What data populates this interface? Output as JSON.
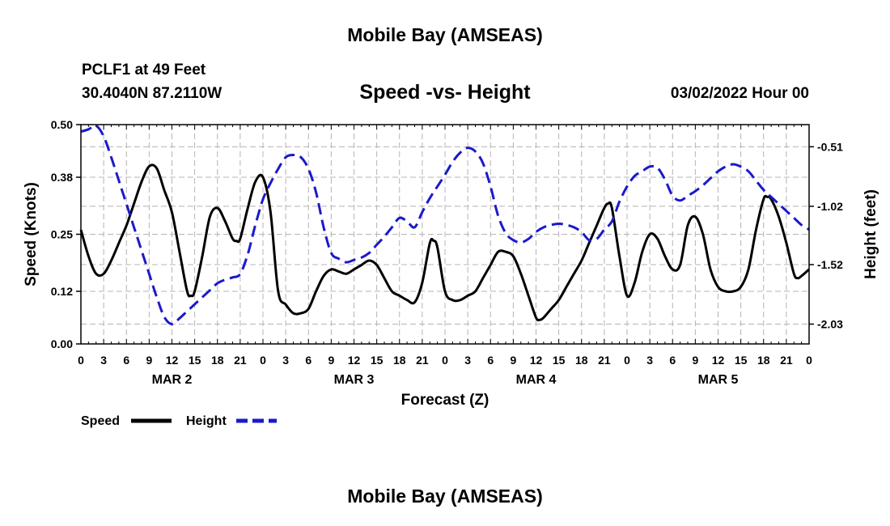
{
  "header": {
    "title": "Mobile Bay (AMSEAS)",
    "station": "PCLF1 at 49 Feet",
    "coords": "30.4040N  87.2110W",
    "chart_title": "Speed -vs- Height",
    "datetime": "03/02/2022 Hour 00"
  },
  "footer": {
    "title": "Mobile Bay (AMSEAS)"
  },
  "legend": {
    "speed_label": "Speed",
    "height_label": "Height"
  },
  "colors": {
    "speed": "#000000",
    "height": "#1a1acc",
    "grid": "#b4b4b4"
  },
  "chart_data": {
    "type": "line",
    "title": "Speed -vs- Height",
    "xlabel": "Forecast (Z)",
    "ylabel": "Speed (Knots)",
    "y2label": "Height (feet)",
    "x_tick_labels": [
      "0",
      "3",
      "6",
      "9",
      "12",
      "15",
      "18",
      "21",
      "0",
      "3",
      "6",
      "9",
      "12",
      "15",
      "18",
      "21",
      "0",
      "3",
      "6",
      "9",
      "12",
      "15",
      "18",
      "21",
      "0",
      "3",
      "6",
      "9",
      "12",
      "15",
      "18",
      "21",
      "0"
    ],
    "day_labels": [
      {
        "label": "MAR 2",
        "hour": 12
      },
      {
        "label": "MAR 3",
        "hour": 36
      },
      {
        "label": "MAR 4",
        "hour": 60
      },
      {
        "label": "MAR 5",
        "hour": 84
      }
    ],
    "xlim": [
      0,
      96
    ],
    "ylim": [
      0,
      0.5
    ],
    "y_ticks": [
      "0.00",
      "0.12",
      "0.25",
      "0.38",
      "0.50"
    ],
    "y2lim": [
      -2.2,
      -0.32
    ],
    "y2_ticks": [
      "-2.03",
      "-1.52",
      "-1.02",
      "-0.51"
    ],
    "grid": true,
    "legend_position": "bottom-left",
    "series": [
      {
        "name": "Speed",
        "axis": "left",
        "style": "solid",
        "points": [
          [
            0,
            0.26
          ],
          [
            1,
            0.2
          ],
          [
            2,
            0.16
          ],
          [
            3,
            0.16
          ],
          [
            4,
            0.19
          ],
          [
            5,
            0.23
          ],
          [
            6,
            0.27
          ],
          [
            7,
            0.32
          ],
          [
            8,
            0.37
          ],
          [
            9,
            0.405
          ],
          [
            10,
            0.4
          ],
          [
            11,
            0.35
          ],
          [
            12,
            0.3
          ],
          [
            13,
            0.21
          ],
          [
            14,
            0.12
          ],
          [
            14.5,
            0.11
          ],
          [
            15,
            0.12
          ],
          [
            16,
            0.2
          ],
          [
            17,
            0.29
          ],
          [
            18,
            0.31
          ],
          [
            19,
            0.28
          ],
          [
            20,
            0.24
          ],
          [
            20.5,
            0.235
          ],
          [
            21,
            0.24
          ],
          [
            22,
            0.31
          ],
          [
            23,
            0.37
          ],
          [
            24,
            0.38
          ],
          [
            25,
            0.3
          ],
          [
            26,
            0.12
          ],
          [
            27,
            0.09
          ],
          [
            28,
            0.07
          ],
          [
            29,
            0.07
          ],
          [
            30,
            0.08
          ],
          [
            31,
            0.12
          ],
          [
            32,
            0.155
          ],
          [
            33,
            0.17
          ],
          [
            34,
            0.165
          ],
          [
            35,
            0.16
          ],
          [
            36,
            0.17
          ],
          [
            37,
            0.18
          ],
          [
            38,
            0.19
          ],
          [
            39,
            0.18
          ],
          [
            40,
            0.15
          ],
          [
            41,
            0.12
          ],
          [
            42,
            0.11
          ],
          [
            43,
            0.1
          ],
          [
            44,
            0.095
          ],
          [
            45,
            0.14
          ],
          [
            46,
            0.23
          ],
          [
            46.5,
            0.235
          ],
          [
            47,
            0.22
          ],
          [
            48,
            0.12
          ],
          [
            49,
            0.1
          ],
          [
            50,
            0.1
          ],
          [
            51,
            0.11
          ],
          [
            52,
            0.12
          ],
          [
            53,
            0.15
          ],
          [
            54,
            0.18
          ],
          [
            55,
            0.21
          ],
          [
            56,
            0.21
          ],
          [
            57,
            0.2
          ],
          [
            58,
            0.16
          ],
          [
            59,
            0.11
          ],
          [
            60,
            0.06
          ],
          [
            60.5,
            0.055
          ],
          [
            61,
            0.06
          ],
          [
            62,
            0.08
          ],
          [
            63,
            0.1
          ],
          [
            64,
            0.13
          ],
          [
            65,
            0.16
          ],
          [
            66,
            0.19
          ],
          [
            67,
            0.23
          ],
          [
            68,
            0.27
          ],
          [
            69,
            0.31
          ],
          [
            69.5,
            0.32
          ],
          [
            70,
            0.31
          ],
          [
            71,
            0.2
          ],
          [
            72,
            0.11
          ],
          [
            73,
            0.14
          ],
          [
            74,
            0.21
          ],
          [
            75,
            0.25
          ],
          [
            76,
            0.24
          ],
          [
            77,
            0.2
          ],
          [
            78,
            0.17
          ],
          [
            79,
            0.18
          ],
          [
            80,
            0.27
          ],
          [
            81,
            0.29
          ],
          [
            82,
            0.25
          ],
          [
            83,
            0.17
          ],
          [
            84,
            0.13
          ],
          [
            85,
            0.12
          ],
          [
            86,
            0.12
          ],
          [
            87,
            0.13
          ],
          [
            88,
            0.17
          ],
          [
            89,
            0.26
          ],
          [
            90,
            0.33
          ],
          [
            90.5,
            0.335
          ],
          [
            91,
            0.33
          ],
          [
            92,
            0.29
          ],
          [
            93,
            0.23
          ],
          [
            94,
            0.16
          ],
          [
            94.5,
            0.15
          ],
          [
            95,
            0.155
          ],
          [
            96,
            0.17
          ]
        ]
      },
      {
        "name": "Height",
        "axis": "right",
        "style": "dashed",
        "points": [
          [
            0,
            -0.38
          ],
          [
            1,
            -0.36
          ],
          [
            2,
            -0.33
          ],
          [
            3,
            -0.42
          ],
          [
            4,
            -0.6
          ],
          [
            5,
            -0.8
          ],
          [
            6,
            -1.0
          ],
          [
            7,
            -1.2
          ],
          [
            8,
            -1.4
          ],
          [
            9,
            -1.6
          ],
          [
            10,
            -1.8
          ],
          [
            11,
            -1.97
          ],
          [
            12,
            -2.03
          ],
          [
            13,
            -1.98
          ],
          [
            14,
            -1.92
          ],
          [
            15,
            -1.86
          ],
          [
            16,
            -1.8
          ],
          [
            17,
            -1.74
          ],
          [
            18,
            -1.68
          ],
          [
            19,
            -1.65
          ],
          [
            20,
            -1.63
          ],
          [
            21,
            -1.6
          ],
          [
            22,
            -1.43
          ],
          [
            23,
            -1.18
          ],
          [
            24,
            -0.96
          ],
          [
            25,
            -0.82
          ],
          [
            26,
            -0.7
          ],
          [
            27,
            -0.6
          ],
          [
            28,
            -0.58
          ],
          [
            29,
            -0.6
          ],
          [
            30,
            -0.7
          ],
          [
            31,
            -0.9
          ],
          [
            32,
            -1.2
          ],
          [
            33,
            -1.42
          ],
          [
            34,
            -1.47
          ],
          [
            35,
            -1.5
          ],
          [
            36,
            -1.48
          ],
          [
            37,
            -1.46
          ],
          [
            38,
            -1.42
          ],
          [
            39,
            -1.35
          ],
          [
            40,
            -1.28
          ],
          [
            41,
            -1.2
          ],
          [
            42,
            -1.12
          ],
          [
            43,
            -1.15
          ],
          [
            44,
            -1.2
          ],
          [
            45,
            -1.07
          ],
          [
            46,
            -0.95
          ],
          [
            47,
            -0.85
          ],
          [
            48,
            -0.75
          ],
          [
            49,
            -0.64
          ],
          [
            50,
            -0.56
          ],
          [
            51,
            -0.52
          ],
          [
            52,
            -0.55
          ],
          [
            53,
            -0.65
          ],
          [
            54,
            -0.85
          ],
          [
            55,
            -1.1
          ],
          [
            56,
            -1.25
          ],
          [
            57,
            -1.31
          ],
          [
            58,
            -1.33
          ],
          [
            59,
            -1.3
          ],
          [
            60,
            -1.24
          ],
          [
            61,
            -1.2
          ],
          [
            62,
            -1.18
          ],
          [
            63,
            -1.17
          ],
          [
            64,
            -1.18
          ],
          [
            65,
            -1.2
          ],
          [
            66,
            -1.24
          ],
          [
            67,
            -1.31
          ],
          [
            68,
            -1.3
          ],
          [
            69,
            -1.22
          ],
          [
            70,
            -1.15
          ],
          [
            71,
            -0.98
          ],
          [
            72,
            -0.85
          ],
          [
            73,
            -0.76
          ],
          [
            74,
            -0.72
          ],
          [
            75,
            -0.68
          ],
          [
            76,
            -0.69
          ],
          [
            77,
            -0.79
          ],
          [
            78,
            -0.93
          ],
          [
            79,
            -0.97
          ],
          [
            80,
            -0.93
          ],
          [
            81,
            -0.89
          ],
          [
            82,
            -0.84
          ],
          [
            83,
            -0.78
          ],
          [
            84,
            -0.72
          ],
          [
            85,
            -0.68
          ],
          [
            86,
            -0.66
          ],
          [
            87,
            -0.68
          ],
          [
            88,
            -0.72
          ],
          [
            89,
            -0.8
          ],
          [
            90,
            -0.88
          ],
          [
            91,
            -0.94
          ],
          [
            92,
            -1.0
          ],
          [
            93,
            -1.06
          ],
          [
            94,
            -1.12
          ],
          [
            95,
            -1.18
          ],
          [
            96,
            -1.22
          ]
        ]
      }
    ]
  }
}
